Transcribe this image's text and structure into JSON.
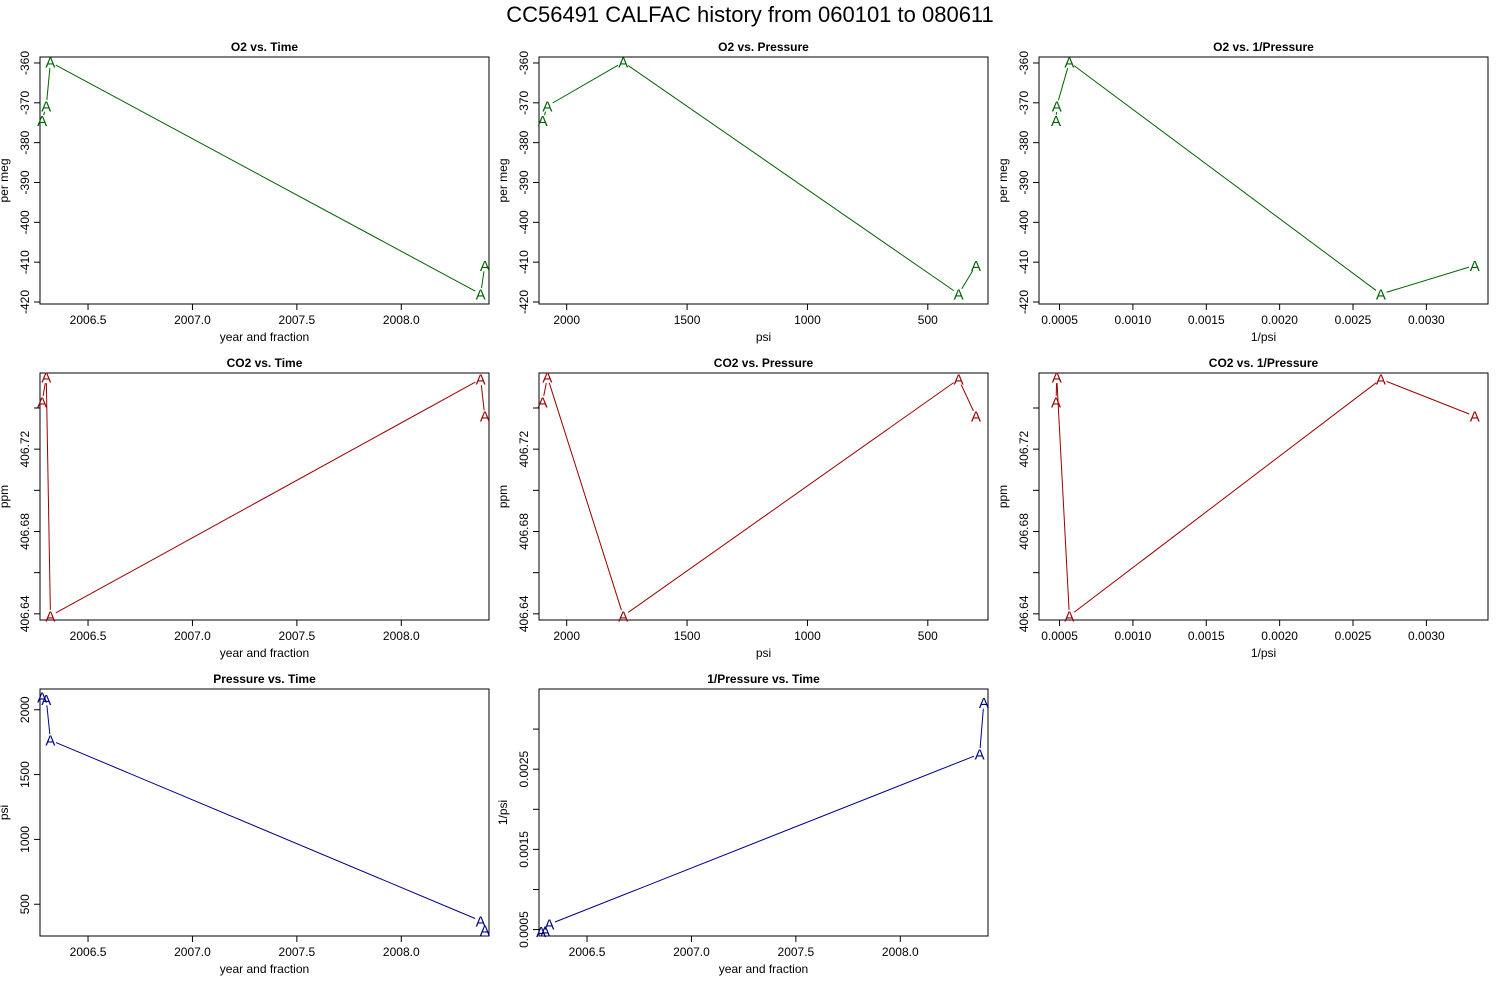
{
  "title": "CC56491   CALFAC history from  060101  to  080611",
  "chart_data": [
    {
      "type": "line",
      "id": "o2-vs-time",
      "title": "O2 vs. Time",
      "xlabel": "year and fraction",
      "ylabel": "per meg",
      "color": "#006400",
      "xlim": [
        2006.27,
        2008.42
      ],
      "ylim": [
        -420.5,
        -358.5
      ],
      "xticks": [
        2006.5,
        2007.0,
        2007.5,
        2008.0
      ],
      "xtick_labels": [
        "2006.5",
        "2007.0",
        "2007.5",
        "2008.0"
      ],
      "yticks": [
        -420,
        -410,
        -400,
        -390,
        -380,
        -370,
        -360
      ],
      "ytick_labels": [
        "-420",
        "-410",
        "-400",
        "-390",
        "-380",
        "-370",
        "-360"
      ],
      "point_label": "A",
      "x": [
        2006.28,
        2006.3,
        2006.32,
        2008.38,
        2008.4
      ],
      "y": [
        -374.5,
        -370.8,
        -359.8,
        -418.0,
        -410.8
      ]
    },
    {
      "type": "line",
      "id": "o2-vs-pressure",
      "title": "O2 vs. Pressure",
      "xlabel": "psi",
      "ylabel": "per meg",
      "color": "#006400",
      "xlim": [
        2115,
        250
      ],
      "ylim": [
        -420.5,
        -358.5
      ],
      "xticks": [
        2000,
        1500,
        1000,
        500
      ],
      "xtick_labels": [
        "2000",
        "1500",
        "1000",
        "500"
      ],
      "yticks": [
        -420,
        -410,
        -400,
        -390,
        -380,
        -370,
        -360
      ],
      "ytick_labels": [
        "-420",
        "-410",
        "-400",
        "-390",
        "-380",
        "-370",
        "-360"
      ],
      "point_label": "A",
      "x": [
        2100,
        2080,
        1765,
        372,
        300
      ],
      "y": [
        -374.5,
        -370.8,
        -359.8,
        -418.0,
        -410.8
      ]
    },
    {
      "type": "line",
      "id": "o2-vs-inverse-pressure",
      "title": "O2 vs. 1/Pressure",
      "xlabel": "1/psi",
      "ylabel": "per meg",
      "color": "#006400",
      "xlim": [
        0.00036,
        0.00342
      ],
      "ylim": [
        -420.5,
        -358.5
      ],
      "xticks": [
        0.0005,
        0.001,
        0.0015,
        0.002,
        0.0025,
        0.003
      ],
      "xtick_labels": [
        "0.0005",
        "0.0010",
        "0.0015",
        "0.0020",
        "0.0025",
        "0.0030"
      ],
      "yticks": [
        -420,
        -410,
        -400,
        -390,
        -380,
        -370,
        -360
      ],
      "ytick_labels": [
        "-420",
        "-410",
        "-400",
        "-390",
        "-380",
        "-370",
        "-360"
      ],
      "point_label": "A",
      "x": [
        0.000476,
        0.000481,
        0.000567,
        0.00269,
        0.00333
      ],
      "y": [
        -374.5,
        -370.8,
        -359.8,
        -418.0,
        -410.8
      ]
    },
    {
      "type": "line",
      "id": "co2-vs-time",
      "title": "CO2 vs. Time",
      "xlabel": "year and fraction",
      "ylabel": "ppm",
      "color": "#9B0000",
      "xlim": [
        2006.27,
        2008.42
      ],
      "ylim": [
        406.637,
        406.757
      ],
      "xticks": [
        2006.5,
        2007.0,
        2007.5,
        2008.0
      ],
      "xtick_labels": [
        "2006.5",
        "2007.0",
        "2007.5",
        "2008.0"
      ],
      "yticks": [
        406.64,
        406.66,
        406.68,
        406.7,
        406.72,
        406.74
      ],
      "ytick_labels": [
        "406.64",
        "",
        "406.68",
        "",
        "406.72",
        ""
      ],
      "point_label": "A",
      "x": [
        2006.28,
        2006.3,
        2006.32,
        2008.38,
        2008.4
      ],
      "y": [
        406.743,
        406.755,
        406.639,
        406.754,
        406.736
      ]
    },
    {
      "type": "line",
      "id": "co2-vs-pressure",
      "title": "CO2 vs. Pressure",
      "xlabel": "psi",
      "ylabel": "ppm",
      "color": "#9B0000",
      "xlim": [
        2115,
        250
      ],
      "ylim": [
        406.637,
        406.757
      ],
      "xticks": [
        2000,
        1500,
        1000,
        500
      ],
      "xtick_labels": [
        "2000",
        "1500",
        "1000",
        "500"
      ],
      "yticks": [
        406.64,
        406.66,
        406.68,
        406.7,
        406.72,
        406.74
      ],
      "ytick_labels": [
        "406.64",
        "",
        "406.68",
        "",
        "406.72",
        ""
      ],
      "point_label": "A",
      "x": [
        2100,
        2080,
        1765,
        372,
        300
      ],
      "y": [
        406.743,
        406.755,
        406.639,
        406.754,
        406.736
      ]
    },
    {
      "type": "line",
      "id": "co2-vs-inverse-pressure",
      "title": "CO2 vs. 1/Pressure",
      "xlabel": "1/psi",
      "ylabel": "ppm",
      "color": "#9B0000",
      "xlim": [
        0.00036,
        0.00342
      ],
      "ylim": [
        406.637,
        406.757
      ],
      "xticks": [
        0.0005,
        0.001,
        0.0015,
        0.002,
        0.0025,
        0.003
      ],
      "xtick_labels": [
        "0.0005",
        "0.0010",
        "0.0015",
        "0.0020",
        "0.0025",
        "0.0030"
      ],
      "yticks": [
        406.64,
        406.66,
        406.68,
        406.7,
        406.72,
        406.74
      ],
      "ytick_labels": [
        "406.64",
        "",
        "406.68",
        "",
        "406.72",
        ""
      ],
      "point_label": "A",
      "x": [
        0.000476,
        0.000481,
        0.000567,
        0.00269,
        0.00333
      ],
      "y": [
        406.743,
        406.755,
        406.639,
        406.754,
        406.736
      ]
    },
    {
      "type": "line",
      "id": "pressure-vs-time",
      "title": "Pressure vs. Time",
      "xlabel": "year and fraction",
      "ylabel": "psi",
      "color": "#00008B",
      "xlim": [
        2006.27,
        2008.42
      ],
      "ylim": [
        255,
        2160
      ],
      "xticks": [
        2006.5,
        2007.0,
        2007.5,
        2008.0
      ],
      "xtick_labels": [
        "2006.5",
        "2007.0",
        "2007.5",
        "2008.0"
      ],
      "yticks": [
        500,
        1000,
        1500,
        2000
      ],
      "ytick_labels": [
        "500",
        "1000",
        "1500",
        "2000"
      ],
      "point_label": "A",
      "x": [
        2006.28,
        2006.3,
        2006.32,
        2008.38,
        2008.4
      ],
      "y": [
        2100,
        2080,
        1765,
        372,
        300
      ]
    },
    {
      "type": "line",
      "id": "inverse-pressure-vs-time",
      "title": "1/Pressure vs. Time",
      "xlabel": "year and fraction",
      "ylabel": "1/psi",
      "color": "#00008B",
      "xlim": [
        2006.27,
        2008.42
      ],
      "ylim": [
        0.00042,
        0.0035
      ],
      "xticks": [
        2006.5,
        2007.0,
        2007.5,
        2008.0
      ],
      "xtick_labels": [
        "2006.5",
        "2007.0",
        "2007.5",
        "2008.0"
      ],
      "yticks": [
        0.0005,
        0.001,
        0.0015,
        0.002,
        0.0025,
        0.003
      ],
      "ytick_labels": [
        "0.0005",
        "",
        "0.0015",
        "",
        "0.0025",
        ""
      ],
      "point_label": "A",
      "x": [
        2006.28,
        2006.3,
        2006.32,
        2008.38,
        2008.4
      ],
      "y": [
        0.000476,
        0.000481,
        0.000567,
        0.00269,
        0.00333
      ]
    }
  ]
}
